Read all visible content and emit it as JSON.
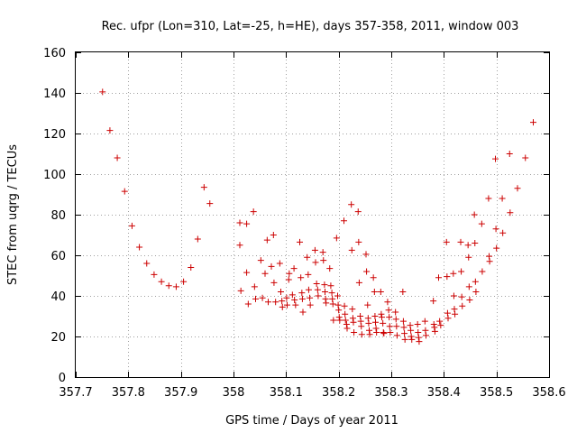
{
  "chart_data": {
    "type": "scatter",
    "title": "Rec. ufpr (Lon=310, Lat=-25, h=HE), days 357-358, 2011, window 003",
    "xlabel": "GPS time / Days of year 2011",
    "ylabel": "STEC from uqrg / TECUs",
    "xlim": [
      357.7,
      358.6
    ],
    "ylim": [
      0,
      160
    ],
    "xticks": [
      357.7,
      357.8,
      357.9,
      358,
      358.1,
      358.2,
      358.3,
      358.4,
      358.5,
      358.6
    ],
    "xtick_labels": [
      "357.7",
      "357.8",
      "357.9",
      "358",
      "358.1",
      "358.2",
      "358.3",
      "358.4",
      "358.5",
      "358.6"
    ],
    "yticks": [
      0,
      20,
      40,
      60,
      80,
      100,
      120,
      140,
      160
    ],
    "ytick_labels": [
      "0",
      "20",
      "40",
      "60",
      "80",
      "100",
      "120",
      "140",
      "160"
    ],
    "grid": true,
    "marker": "+",
    "color": "#cc0000",
    "series": [
      {
        "points": [
          [
            357.751,
            140.5
          ],
          [
            357.765,
            121.5
          ],
          [
            357.779,
            108
          ],
          [
            357.793,
            91.5
          ],
          [
            357.807,
            74.5
          ],
          [
            357.821,
            64
          ],
          [
            357.835,
            56
          ],
          [
            357.849,
            50.5
          ],
          [
            357.863,
            47
          ],
          [
            357.877,
            45
          ],
          [
            357.891,
            44.5
          ],
          [
            357.905,
            47
          ],
          [
            357.919,
            54
          ],
          [
            357.932,
            68
          ],
          [
            357.944,
            93.5
          ],
          [
            357.955,
            85.5
          ],
          [
            358.012,
            76
          ],
          [
            358.012,
            65
          ],
          [
            358.014,
            42.5
          ],
          [
            358.025,
            75.5
          ],
          [
            358.025,
            51.5
          ],
          [
            358.028,
            36
          ],
          [
            358.038,
            81.5
          ],
          [
            358.04,
            44.5
          ],
          [
            358.042,
            38.5
          ],
          [
            358.052,
            57.5
          ],
          [
            358.055,
            39
          ],
          [
            358.06,
            51
          ],
          [
            358.064,
            67.5
          ],
          [
            358.066,
            37
          ],
          [
            358.072,
            54.5
          ],
          [
            358.076,
            70
          ],
          [
            358.077,
            46.5
          ],
          [
            358.08,
            37
          ],
          [
            358.088,
            56
          ],
          [
            358.09,
            42
          ],
          [
            358.092,
            37.5
          ],
          [
            358.093,
            34.5
          ],
          [
            358.101,
            39
          ],
          [
            358.102,
            35.5
          ],
          [
            358.105,
            48
          ],
          [
            358.106,
            51
          ],
          [
            358.112,
            40.5
          ],
          [
            358.115,
            53.5
          ],
          [
            358.116,
            38
          ],
          [
            358.118,
            35.5
          ],
          [
            358.126,
            66.5
          ],
          [
            358.128,
            49
          ],
          [
            358.13,
            41.5
          ],
          [
            358.131,
            38.5
          ],
          [
            358.132,
            32
          ],
          [
            358.14,
            59
          ],
          [
            358.142,
            50.5
          ],
          [
            358.143,
            43
          ],
          [
            358.145,
            39
          ],
          [
            358.146,
            35.5
          ],
          [
            358.155,
            62.5
          ],
          [
            358.156,
            56.5
          ],
          [
            358.158,
            46
          ],
          [
            358.16,
            43
          ],
          [
            358.161,
            40
          ],
          [
            358.17,
            61.5
          ],
          [
            358.171,
            57.5
          ],
          [
            358.173,
            45.5
          ],
          [
            358.174,
            42
          ],
          [
            358.175,
            38.5
          ],
          [
            358.176,
            36.5
          ],
          [
            358.183,
            53.5
          ],
          [
            358.185,
            45
          ],
          [
            358.187,
            41.5
          ],
          [
            358.188,
            38.5
          ],
          [
            358.189,
            36
          ],
          [
            358.19,
            28
          ],
          [
            358.196,
            68.5
          ],
          [
            358.198,
            40
          ],
          [
            358.199,
            35.5
          ],
          [
            358.2,
            33
          ],
          [
            358.201,
            29.5
          ],
          [
            358.202,
            28
          ],
          [
            358.21,
            77
          ],
          [
            358.211,
            35
          ],
          [
            358.212,
            31
          ],
          [
            358.213,
            28
          ],
          [
            358.215,
            26
          ],
          [
            358.216,
            24
          ],
          [
            358.224,
            85
          ],
          [
            358.225,
            62.5
          ],
          [
            358.226,
            33.5
          ],
          [
            358.227,
            29
          ],
          [
            358.228,
            27
          ],
          [
            358.229,
            22
          ],
          [
            358.237,
            81.5
          ],
          [
            358.238,
            66.5
          ],
          [
            358.239,
            46.5
          ],
          [
            358.241,
            30
          ],
          [
            358.242,
            27.5
          ],
          [
            358.243,
            25
          ],
          [
            358.244,
            21
          ],
          [
            358.252,
            60.5
          ],
          [
            358.253,
            52
          ],
          [
            358.255,
            35.5
          ],
          [
            358.256,
            29
          ],
          [
            358.257,
            26.5
          ],
          [
            358.258,
            23
          ],
          [
            358.259,
            21
          ],
          [
            358.266,
            49
          ],
          [
            358.268,
            42
          ],
          [
            358.269,
            30
          ],
          [
            358.27,
            27
          ],
          [
            358.271,
            24
          ],
          [
            358.272,
            22
          ],
          [
            358.28,
            42
          ],
          [
            358.281,
            31
          ],
          [
            358.282,
            29.5
          ],
          [
            358.284,
            26.5
          ],
          [
            358.285,
            22
          ],
          [
            358.286,
            21.5
          ],
          [
            358.293,
            37
          ],
          [
            358.295,
            33
          ],
          [
            358.296,
            29.5
          ],
          [
            358.297,
            25
          ],
          [
            358.298,
            22
          ],
          [
            358.308,
            32
          ],
          [
            358.309,
            28.5
          ],
          [
            358.31,
            25
          ],
          [
            358.311,
            20.5
          ],
          [
            358.322,
            42
          ],
          [
            358.323,
            27.5
          ],
          [
            358.324,
            24.5
          ],
          [
            358.325,
            21.5
          ],
          [
            358.326,
            18.5
          ],
          [
            358.336,
            25.5
          ],
          [
            358.337,
            23
          ],
          [
            358.338,
            20
          ],
          [
            358.339,
            18.5
          ],
          [
            358.35,
            26
          ],
          [
            358.351,
            22
          ],
          [
            358.352,
            19.5
          ],
          [
            358.353,
            17.5
          ],
          [
            358.364,
            27.5
          ],
          [
            358.365,
            23
          ],
          [
            358.366,
            20.5
          ],
          [
            358.38,
            37.5
          ],
          [
            358.381,
            26
          ],
          [
            358.382,
            24.5
          ],
          [
            358.383,
            22.5
          ],
          [
            358.39,
            49
          ],
          [
            358.392,
            27.5
          ],
          [
            358.394,
            25.5
          ],
          [
            358.405,
            66.5
          ],
          [
            358.406,
            49.5
          ],
          [
            358.407,
            31.5
          ],
          [
            358.408,
            29
          ],
          [
            358.418,
            51
          ],
          [
            358.419,
            40
          ],
          [
            358.42,
            33.5
          ],
          [
            358.421,
            31
          ],
          [
            358.432,
            66.5
          ],
          [
            358.433,
            52
          ],
          [
            358.434,
            39.5
          ],
          [
            358.435,
            35
          ],
          [
            358.446,
            65
          ],
          [
            358.447,
            59
          ],
          [
            358.448,
            44.5
          ],
          [
            358.449,
            38
          ],
          [
            358.458,
            80
          ],
          [
            358.459,
            66
          ],
          [
            358.46,
            47
          ],
          [
            358.461,
            42
          ],
          [
            358.472,
            75.5
          ],
          [
            358.473,
            52
          ],
          [
            358.485,
            88
          ],
          [
            358.486,
            59.5
          ],
          [
            358.487,
            57
          ],
          [
            358.498,
            107.5
          ],
          [
            358.499,
            73
          ],
          [
            358.5,
            63.5
          ],
          [
            358.511,
            88
          ],
          [
            358.512,
            71
          ],
          [
            358.525,
            110
          ],
          [
            358.526,
            81
          ],
          [
            358.54,
            93
          ],
          [
            358.555,
            108
          ],
          [
            358.57,
            125.5
          ]
        ]
      }
    ]
  }
}
